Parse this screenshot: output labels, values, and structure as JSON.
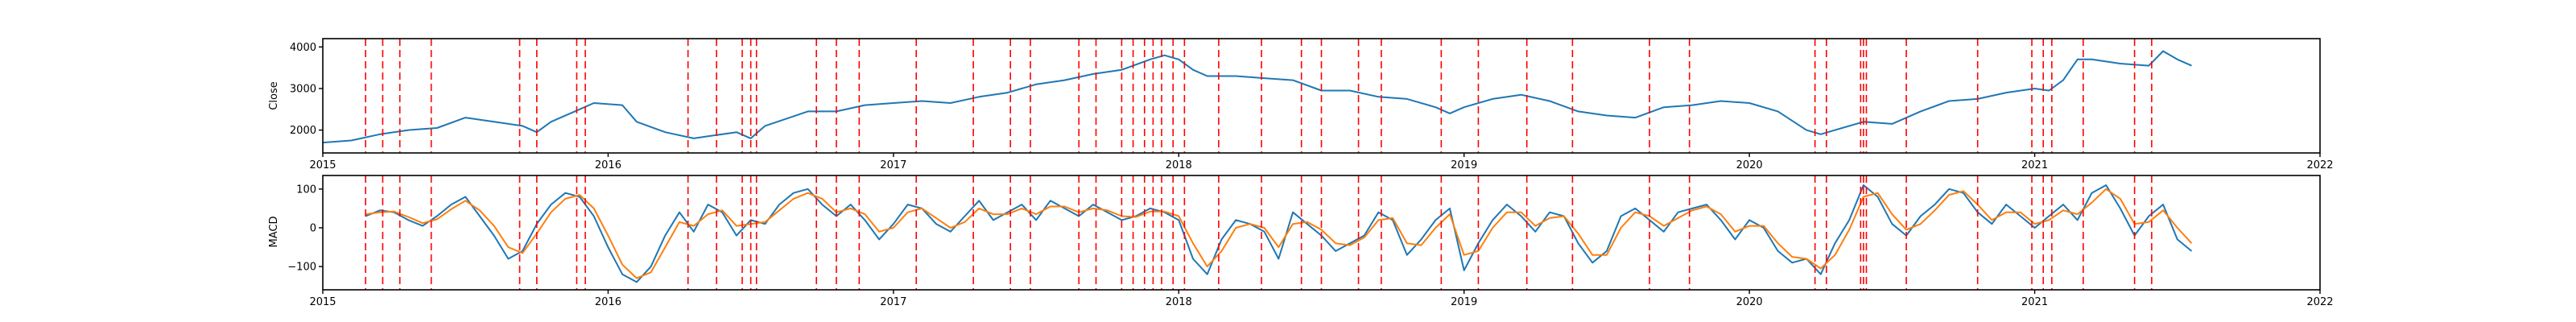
{
  "chart_data": [
    {
      "type": "line",
      "ylabel": "Close",
      "xlim": [
        2015.0,
        2022.0
      ],
      "ylim": [
        1450,
        4200
      ],
      "x_ticks": [
        2015,
        2016,
        2017,
        2018,
        2019,
        2020,
        2021,
        2022
      ],
      "x_tick_labels": [
        "2015",
        "2016",
        "2017",
        "2018",
        "2019",
        "2020",
        "2021",
        "2022"
      ],
      "y_ticks": [
        2000,
        3000,
        4000
      ],
      "y_tick_labels": [
        "2000",
        "3000",
        "4000"
      ],
      "series": [
        {
          "color": "#1f77b4",
          "x": [
            2015.0,
            2015.1,
            2015.2,
            2015.3,
            2015.4,
            2015.5,
            2015.6,
            2015.7,
            2015.75,
            2015.8,
            2015.9,
            2015.95,
            2016.05,
            2016.1,
            2016.2,
            2016.3,
            2016.35,
            2016.45,
            2016.5,
            2016.55,
            2016.7,
            2016.8,
            2016.9,
            2017.0,
            2017.1,
            2017.2,
            2017.3,
            2017.4,
            2017.5,
            2017.6,
            2017.7,
            2017.8,
            2017.9,
            2017.95,
            2018.0,
            2018.05,
            2018.1,
            2018.2,
            2018.3,
            2018.4,
            2018.5,
            2018.6,
            2018.7,
            2018.8,
            2018.9,
            2018.95,
            2019.0,
            2019.1,
            2019.2,
            2019.3,
            2019.4,
            2019.5,
            2019.6,
            2019.7,
            2019.8,
            2019.9,
            2020.0,
            2020.1,
            2020.2,
            2020.25,
            2020.3,
            2020.4,
            2020.5,
            2020.6,
            2020.7,
            2020.8,
            2020.9,
            2021.0,
            2021.05,
            2021.1,
            2021.15,
            2021.2,
            2021.3,
            2021.4,
            2021.45,
            2021.5,
            2021.55
          ],
          "y": [
            1700,
            1750,
            1900,
            2000,
            2050,
            2300,
            2200,
            2100,
            1950,
            2200,
            2500,
            2650,
            2600,
            2200,
            1950,
            1800,
            1850,
            1950,
            1800,
            2100,
            2450,
            2450,
            2600,
            2650,
            2700,
            2650,
            2800,
            2900,
            3100,
            3200,
            3350,
            3450,
            3700,
            3800,
            3700,
            3450,
            3300,
            3300,
            3250,
            3200,
            2950,
            2950,
            2800,
            2750,
            2550,
            2400,
            2550,
            2750,
            2850,
            2700,
            2450,
            2350,
            2300,
            2550,
            2600,
            2700,
            2650,
            2450,
            2000,
            1900,
            2000,
            2200,
            2150,
            2450,
            2700,
            2750,
            2900,
            3000,
            2950,
            3200,
            3700,
            3700,
            3600,
            3550,
            3900,
            3700,
            3550
          ]
        }
      ],
      "vlines": [
        2015.15,
        2015.21,
        2015.27,
        2015.38,
        2015.69,
        2015.75,
        2015.89,
        2015.92,
        2016.28,
        2016.38,
        2016.47,
        2016.5,
        2016.52,
        2016.73,
        2016.8,
        2016.88,
        2017.08,
        2017.28,
        2017.41,
        2017.48,
        2017.65,
        2017.71,
        2017.8,
        2017.84,
        2017.88,
        2017.91,
        2017.94,
        2017.98,
        2018.02,
        2018.14,
        2018.29,
        2018.43,
        2018.5,
        2018.63,
        2018.71,
        2018.92,
        2019.05,
        2019.22,
        2019.38,
        2019.65,
        2019.79,
        2020.23,
        2020.27,
        2020.39,
        2020.4,
        2020.41,
        2020.55,
        2020.8,
        2020.99,
        2021.03,
        2021.06,
        2021.17,
        2021.35,
        2021.41
      ]
    },
    {
      "type": "line",
      "ylabel": "MACD",
      "xlim": [
        2015.0,
        2022.0
      ],
      "ylim": [
        -160,
        135
      ],
      "x_ticks": [
        2015,
        2016,
        2017,
        2018,
        2019,
        2020,
        2021,
        2022
      ],
      "x_tick_labels": [
        "2015",
        "2016",
        "2017",
        "2018",
        "2019",
        "2020",
        "2021",
        "2022"
      ],
      "y_ticks": [
        -100,
        0,
        100
      ],
      "y_tick_labels": [
        "−100",
        "0",
        "100"
      ],
      "series": [
        {
          "color": "#1f77b4",
          "x": [
            2015.15,
            2015.2,
            2015.25,
            2015.3,
            2015.35,
            2015.4,
            2015.45,
            2015.5,
            2015.55,
            2015.6,
            2015.65,
            2015.7,
            2015.75,
            2015.8,
            2015.85,
            2015.9,
            2015.95,
            2016.0,
            2016.05,
            2016.1,
            2016.15,
            2016.2,
            2016.25,
            2016.3,
            2016.35,
            2016.4,
            2016.45,
            2016.5,
            2016.55,
            2016.6,
            2016.65,
            2016.7,
            2016.75,
            2016.8,
            2016.85,
            2016.9,
            2016.95,
            2017.0,
            2017.05,
            2017.1,
            2017.15,
            2017.2,
            2017.25,
            2017.3,
            2017.35,
            2017.4,
            2017.45,
            2017.5,
            2017.55,
            2017.6,
            2017.65,
            2017.7,
            2017.75,
            2017.8,
            2017.85,
            2017.9,
            2017.95,
            2018.0,
            2018.05,
            2018.1,
            2018.15,
            2018.2,
            2018.25,
            2018.3,
            2018.35,
            2018.4,
            2018.45,
            2018.5,
            2018.55,
            2018.6,
            2018.65,
            2018.7,
            2018.75,
            2018.8,
            2018.85,
            2018.9,
            2018.95,
            2019.0,
            2019.05,
            2019.1,
            2019.15,
            2019.2,
            2019.25,
            2019.3,
            2019.35,
            2019.4,
            2019.45,
            2019.5,
            2019.55,
            2019.6,
            2019.65,
            2019.7,
            2019.75,
            2019.8,
            2019.85,
            2019.9,
            2019.95,
            2020.0,
            2020.05,
            2020.1,
            2020.15,
            2020.2,
            2020.25,
            2020.3,
            2020.35,
            2020.4,
            2020.45,
            2020.5,
            2020.55,
            2020.6,
            2020.65,
            2020.7,
            2020.75,
            2020.8,
            2020.85,
            2020.9,
            2020.95,
            2021.0,
            2021.05,
            2021.1,
            2021.15,
            2021.2,
            2021.25,
            2021.3,
            2021.35,
            2021.4,
            2021.45,
            2021.5,
            2021.55
          ],
          "y": [
            30,
            45,
            40,
            20,
            5,
            30,
            60,
            80,
            30,
            -20,
            -80,
            -60,
            10,
            60,
            90,
            80,
            30,
            -50,
            -120,
            -140,
            -100,
            -20,
            40,
            -10,
            60,
            40,
            -20,
            20,
            10,
            60,
            90,
            100,
            60,
            30,
            60,
            20,
            -30,
            10,
            60,
            50,
            10,
            -10,
            30,
            70,
            20,
            40,
            60,
            20,
            70,
            50,
            30,
            60,
            40,
            20,
            30,
            50,
            40,
            20,
            -80,
            -120,
            -30,
            20,
            10,
            -10,
            -80,
            40,
            10,
            -20,
            -60,
            -40,
            -20,
            40,
            20,
            -70,
            -30,
            20,
            50,
            -110,
            -40,
            20,
            60,
            30,
            -10,
            40,
            30,
            -40,
            -90,
            -60,
            30,
            50,
            20,
            -10,
            40,
            50,
            60,
            20,
            -30,
            20,
            0,
            -60,
            -90,
            -80,
            -120,
            -40,
            20,
            110,
            80,
            10,
            -20,
            30,
            60,
            100,
            90,
            40,
            10,
            60,
            30,
            0,
            30,
            60,
            20,
            90,
            110,
            50,
            -20,
            30,
            60,
            -30,
            -60
          ]
        },
        {
          "color": "#ff7f0e",
          "x": [
            2015.15,
            2015.2,
            2015.25,
            2015.3,
            2015.35,
            2015.4,
            2015.45,
            2015.5,
            2015.55,
            2015.6,
            2015.65,
            2015.7,
            2015.75,
            2015.8,
            2015.85,
            2015.9,
            2015.95,
            2016.0,
            2016.05,
            2016.1,
            2016.15,
            2016.2,
            2016.25,
            2016.3,
            2016.35,
            2016.4,
            2016.45,
            2016.5,
            2016.55,
            2016.6,
            2016.65,
            2016.7,
            2016.75,
            2016.8,
            2016.85,
            2016.9,
            2016.95,
            2017.0,
            2017.05,
            2017.1,
            2017.15,
            2017.2,
            2017.25,
            2017.3,
            2017.35,
            2017.4,
            2017.45,
            2017.5,
            2017.55,
            2017.6,
            2017.65,
            2017.7,
            2017.75,
            2017.8,
            2017.85,
            2017.9,
            2017.95,
            2018.0,
            2018.05,
            2018.1,
            2018.15,
            2018.2,
            2018.25,
            2018.3,
            2018.35,
            2018.4,
            2018.45,
            2018.5,
            2018.55,
            2018.6,
            2018.65,
            2018.7,
            2018.75,
            2018.8,
            2018.85,
            2018.9,
            2018.95,
            2019.0,
            2019.05,
            2019.1,
            2019.15,
            2019.2,
            2019.25,
            2019.3,
            2019.35,
            2019.4,
            2019.45,
            2019.5,
            2019.55,
            2019.6,
            2019.65,
            2019.7,
            2019.75,
            2019.8,
            2019.85,
            2019.9,
            2019.95,
            2020.0,
            2020.05,
            2020.1,
            2020.15,
            2020.2,
            2020.25,
            2020.3,
            2020.35,
            2020.4,
            2020.45,
            2020.5,
            2020.55,
            2020.6,
            2020.65,
            2020.7,
            2020.75,
            2020.8,
            2020.85,
            2020.9,
            2020.95,
            2021.0,
            2021.05,
            2021.1,
            2021.15,
            2021.2,
            2021.25,
            2021.3,
            2021.35,
            2021.4,
            2021.45,
            2021.5,
            2021.55
          ],
          "y": [
            35,
            40,
            42,
            28,
            12,
            22,
            48,
            70,
            45,
            5,
            -50,
            -65,
            -15,
            40,
            75,
            85,
            50,
            -20,
            -95,
            -130,
            -115,
            -50,
            15,
            5,
            35,
            45,
            5,
            10,
            15,
            45,
            75,
            90,
            75,
            40,
            50,
            35,
            -10,
            0,
            40,
            50,
            25,
            0,
            15,
            50,
            35,
            35,
            50,
            35,
            55,
            55,
            40,
            50,
            45,
            30,
            28,
            42,
            42,
            30,
            -40,
            -100,
            -60,
            0,
            10,
            0,
            -50,
            10,
            15,
            -5,
            -40,
            -45,
            -25,
            20,
            25,
            -40,
            -45,
            0,
            35,
            -70,
            -60,
            0,
            40,
            40,
            5,
            25,
            30,
            -15,
            -70,
            -70,
            0,
            40,
            30,
            5,
            25,
            45,
            55,
            35,
            -10,
            5,
            5,
            -40,
            -75,
            -80,
            -105,
            -70,
            -5,
            80,
            90,
            35,
            -5,
            10,
            45,
            85,
            95,
            60,
            20,
            40,
            40,
            10,
            20,
            45,
            35,
            65,
            100,
            75,
            10,
            15,
            45,
            0,
            -40
          ]
        }
      ],
      "vlines": [
        2015.15,
        2015.21,
        2015.27,
        2015.38,
        2015.69,
        2015.75,
        2015.89,
        2015.92,
        2016.28,
        2016.38,
        2016.47,
        2016.5,
        2016.52,
        2016.73,
        2016.8,
        2016.88,
        2017.08,
        2017.28,
        2017.41,
        2017.48,
        2017.65,
        2017.71,
        2017.8,
        2017.84,
        2017.88,
        2017.91,
        2017.94,
        2017.98,
        2018.02,
        2018.14,
        2018.29,
        2018.43,
        2018.5,
        2018.63,
        2018.71,
        2018.92,
        2019.05,
        2019.22,
        2019.38,
        2019.65,
        2019.79,
        2020.23,
        2020.27,
        2020.39,
        2020.4,
        2020.41,
        2020.55,
        2020.8,
        2020.99,
        2021.03,
        2021.06,
        2021.17,
        2021.35,
        2021.41
      ]
    }
  ]
}
